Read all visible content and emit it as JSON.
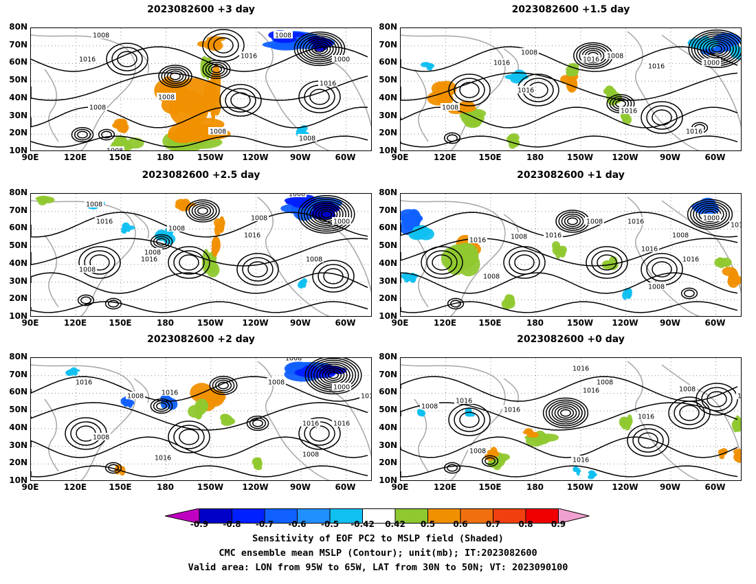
{
  "panels": [
    {
      "title": "2023082600 +3 day"
    },
    {
      "title": "2023082600 +1.5 day"
    },
    {
      "title": "2023082600 +2.5 day"
    },
    {
      "title": "2023082600 +1 day"
    },
    {
      "title": "2023082600 +2 day"
    },
    {
      "title": "2023082600 +0 day"
    }
  ],
  "lat_labels": [
    "80N",
    "70N",
    "60N",
    "50N",
    "40N",
    "30N",
    "20N",
    "10N"
  ],
  "lon_labels": [
    "90E",
    "120E",
    "150E",
    "180",
    "150W",
    "120W",
    "90W",
    "60W"
  ],
  "contour_labels": [
    "1000",
    "1008",
    "1016"
  ],
  "colorbar": {
    "labels": [
      "-0.9",
      "-0.8",
      "-0.7",
      "-0.6",
      "-0.5",
      "-0.42",
      "0.42",
      "0.5",
      "0.6",
      "0.7",
      "0.8",
      "0.9"
    ],
    "colors": [
      "#c000c0",
      "#0000c8",
      "#0020ff",
      "#1060ff",
      "#2090ff",
      "#10c0f0",
      "#ffffff",
      "#90c830",
      "#f09000",
      "#f07010",
      "#f04010",
      "#f00000",
      "#f0a0d0"
    ]
  },
  "caption": {
    "line1": "Sensitivity of EOF PC2 to MSLP field (Shaded)",
    "line2": "CMC ensemble mean MSLP (Contour); unit(mb); IT:2023082600",
    "line3": "Valid area: LON from 95W to 65W, LAT from 30N to 50N; VT: 2023090100"
  }
}
